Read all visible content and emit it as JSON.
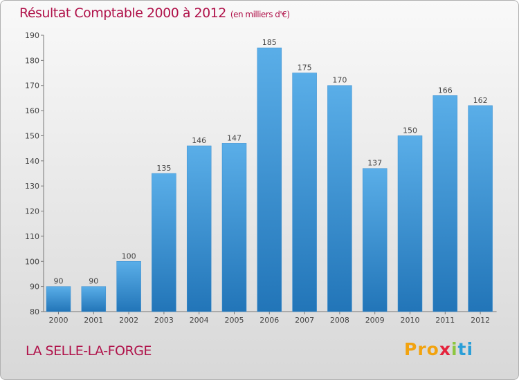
{
  "title": "Résultat Comptable 2000 à 2012",
  "subtitle": "(en milliers d'€)",
  "commune": "LA SELLE-LA-FORGE",
  "logo": {
    "p1": "Pro",
    "p2": "x",
    "p3": "i",
    "p4": "ti"
  },
  "colors": {
    "title": "#b0124a",
    "bar_light": "#5aaee8",
    "bar_dark": "#2275b8"
  },
  "chart_data": {
    "type": "bar",
    "categories": [
      "2000",
      "2001",
      "2002",
      "2003",
      "2004",
      "2005",
      "2006",
      "2007",
      "2008",
      "2009",
      "2010",
      "2011",
      "2012"
    ],
    "values": [
      90,
      90,
      100,
      135,
      146,
      147,
      185,
      175,
      170,
      137,
      150,
      166,
      162
    ],
    "ylim": [
      80,
      190
    ],
    "yticks": [
      80,
      90,
      100,
      110,
      120,
      130,
      140,
      150,
      160,
      170,
      180,
      190
    ],
    "grid": false,
    "data_labels": true
  }
}
